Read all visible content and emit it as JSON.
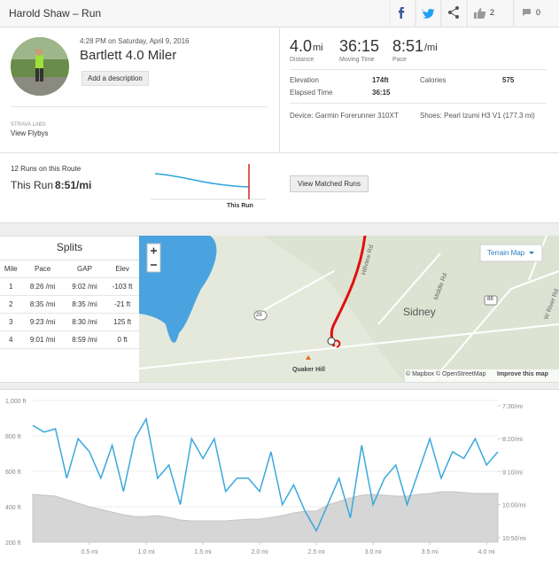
{
  "header": {
    "title": "Harold Shaw – Run",
    "kudos": "2",
    "comments": "0"
  },
  "activity": {
    "time": "4:28 PM on Saturday, April 9, 2016",
    "name": "Bartlett 4.0 Miler",
    "add_description": "Add a description",
    "labs": "STRAVA LABS",
    "flyby": "View Flybys"
  },
  "stats": [
    {
      "value": "4.0",
      "unit": "mi",
      "label": "Distance"
    },
    {
      "value": "36:15",
      "unit": "",
      "label": "Moving Time"
    },
    {
      "value": "8:51",
      "unit": "/mi",
      "label": "Pace"
    }
  ],
  "details": {
    "elevation_label": "Elevation",
    "elevation": "174ft",
    "calories_label": "Calories",
    "calories": "575",
    "elapsed_label": "Elapsed Time",
    "elapsed": "36:15",
    "device": "Device: Garmin Forerunner 310XT",
    "shoes": "Shoes: Pearl Izumi H3 V1 (177.3 mi)"
  },
  "route": {
    "count": "12 Runs on this Route",
    "this_run": "This Run",
    "pace": "8:51/mi",
    "marker": "This Run",
    "button": "View Matched Runs"
  },
  "splits": {
    "title": "Splits",
    "headers": [
      "Mile",
      "Pace",
      "GAP",
      "Elev"
    ],
    "rows": [
      [
        "1",
        "8:26 /mi",
        "9:02 /mi",
        "-103 ft"
      ],
      [
        "2",
        "8:35 /mi",
        "8:35 /mi",
        "-21 ft"
      ],
      [
        "3",
        "9:23 /mi",
        "8:30 /mi",
        "125 ft"
      ],
      [
        "4",
        "9:01 /mi",
        "8:59 /mi",
        "0 ft"
      ]
    ]
  },
  "map": {
    "layer": "Terrain Map",
    "town": "Sidney",
    "hill": "Quaker Hill",
    "road1": "Hillview Rd",
    "road2": "Middle Rd",
    "road3": "W River Rd",
    "route1": "29",
    "route2": "88",
    "attribution": "© Mapbox © OpenStreetMap",
    "improve": "Improve this map"
  },
  "chart": {
    "type": "line",
    "xlim": [
      0,
      4.1
    ],
    "xticks": [
      {
        "value": 0.5,
        "label": "0.5 mi"
      },
      {
        "value": 1.0,
        "label": "1.0 mi"
      },
      {
        "value": 1.5,
        "label": "1.5 mi"
      },
      {
        "value": 2.0,
        "label": "2.0 mi"
      },
      {
        "value": 2.5,
        "label": "2.5 mi"
      },
      {
        "value": 3.0,
        "label": "3.0 mi"
      },
      {
        "value": 3.5,
        "label": "3.5 mi"
      },
      {
        "value": 4.0,
        "label": "4.0 mi"
      }
    ],
    "ylim": [
      200,
      1000
    ],
    "yticks": [
      {
        "value": 200,
        "label": "200 ft"
      },
      {
        "value": 400,
        "label": "400 ft"
      },
      {
        "value": 600,
        "label": "600 ft"
      },
      {
        "value": 800,
        "label": "800 ft"
      },
      {
        "value": 1000,
        "label": "1,000 ft"
      }
    ],
    "y2lim": [
      657,
      442
    ],
    "y2ticks": [
      {
        "value": 450,
        "label": "7:30/mi"
      },
      {
        "value": 500,
        "label": "8:20/mi"
      },
      {
        "value": 550,
        "label": "9:10/mi"
      },
      {
        "value": 600,
        "label": "10:00/mi"
      },
      {
        "value": 650,
        "label": "10:50/mi"
      }
    ],
    "x": [
      0,
      0.1,
      0.2,
      0.3,
      0.4,
      0.5,
      0.6,
      0.7,
      0.8,
      0.9,
      1.0,
      1.1,
      1.2,
      1.3,
      1.4,
      1.5,
      1.6,
      1.7,
      1.8,
      1.9,
      2.0,
      2.1,
      2.2,
      2.3,
      2.4,
      2.5,
      2.6,
      2.7,
      2.8,
      2.9,
      3.0,
      3.1,
      3.2,
      3.3,
      3.4,
      3.5,
      3.6,
      3.7,
      3.8,
      3.9,
      4.0,
      4.1
    ],
    "series": [
      {
        "name": "Elevation",
        "color": "#d6d6d6",
        "values": [
          470,
          465,
          460,
          440,
          420,
          400,
          385,
          370,
          355,
          345,
          345,
          350,
          340,
          325,
          320,
          320,
          320,
          320,
          325,
          330,
          330,
          340,
          350,
          365,
          375,
          375,
          410,
          430,
          450,
          465,
          470,
          465,
          460,
          460,
          470,
          475,
          485,
          485,
          480,
          475,
          475,
          475
        ]
      },
      {
        "name": "Pace",
        "color": "#3aa8dc",
        "axis": "y2",
        "values": [
          480,
          490,
          485,
          560,
          500,
          520,
          560,
          510,
          580,
          500,
          470,
          560,
          540,
          600,
          500,
          530,
          500,
          580,
          560,
          560,
          580,
          520,
          600,
          570,
          610,
          640,
          600,
          560,
          620,
          510,
          600,
          560,
          540,
          600,
          550,
          500,
          560,
          520,
          530,
          500,
          540,
          520
        ]
      }
    ]
  }
}
